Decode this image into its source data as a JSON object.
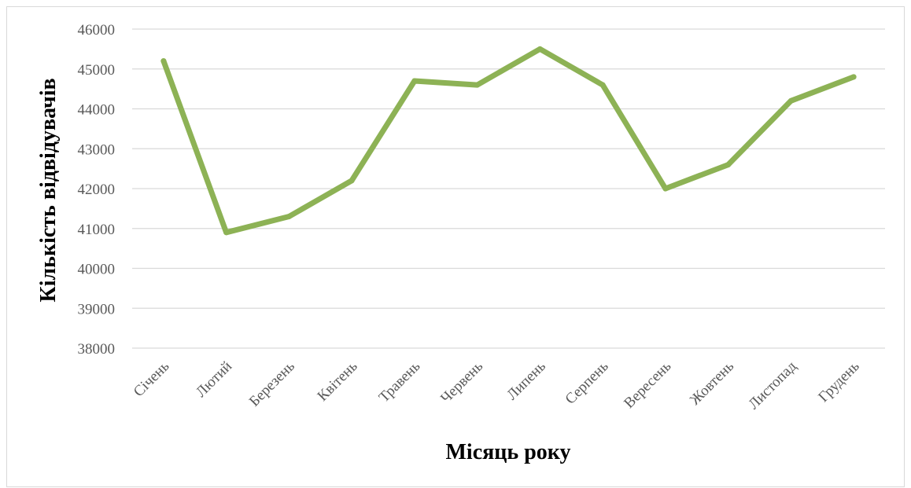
{
  "chart_data": {
    "type": "line",
    "categories": [
      "Січень",
      "Лютий",
      "Березень",
      "Квітень",
      "Травень",
      "Червень",
      "Липень",
      "Серпень",
      "Вересень",
      "Жовтень",
      "Листопад",
      "Грудень"
    ],
    "series": [
      {
        "values": [
          45200,
          40900,
          41300,
          42200,
          44700,
          44600,
          45500,
          44600,
          42000,
          42600,
          44200,
          44800
        ]
      }
    ],
    "xlabel": "Місяць року",
    "ylabel": "Кількість відвідувачів",
    "ylim": [
      38000,
      46000
    ],
    "yticks": [
      38000,
      39000,
      40000,
      41000,
      42000,
      43000,
      44000,
      45000,
      46000
    ],
    "grid": true,
    "legend": "none",
    "colors": {
      "line": "#8db255",
      "grid": "#d9d9d9",
      "tick_text": "#595959"
    }
  }
}
